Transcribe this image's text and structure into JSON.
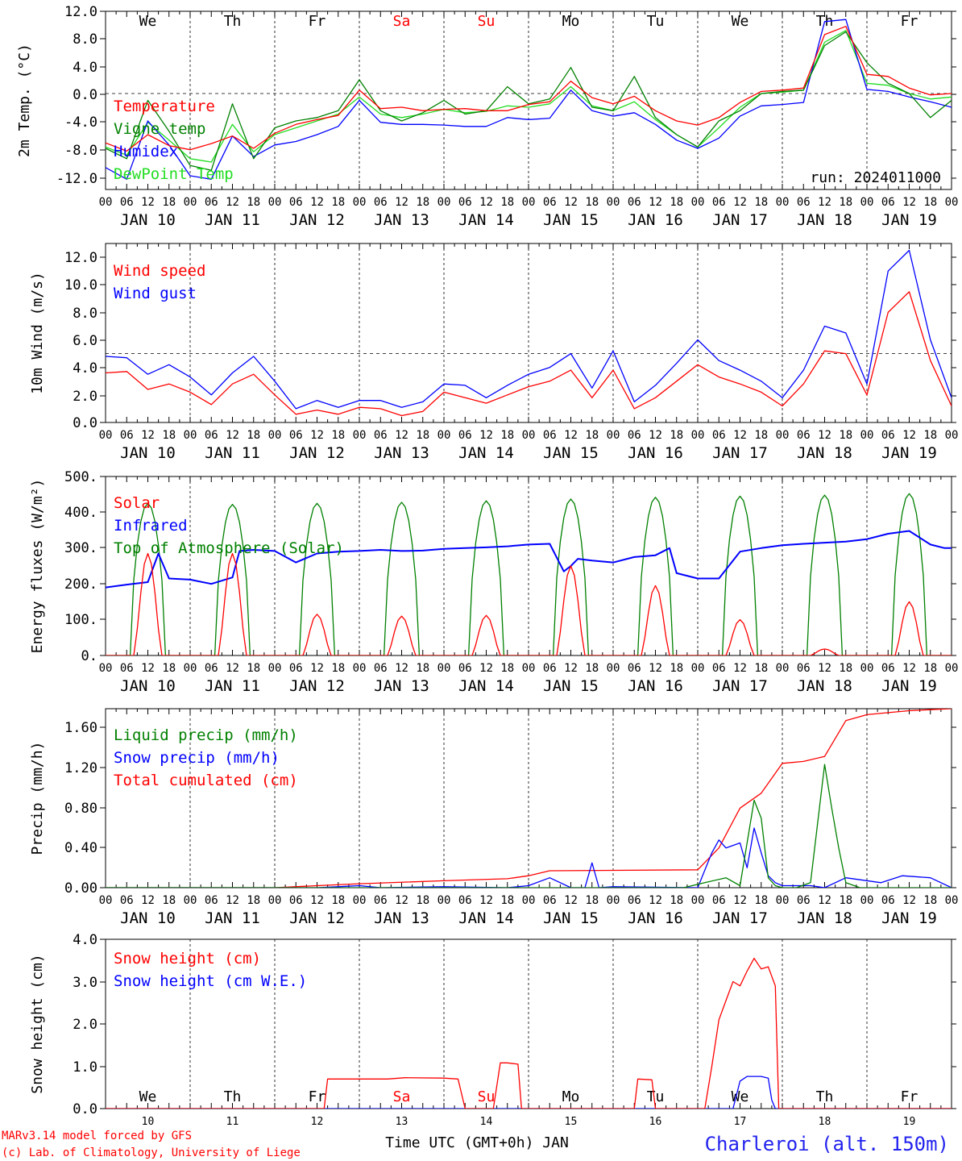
{
  "colors": {
    "red": "#ff0000",
    "blue": "#0000ff",
    "green": "#008000",
    "lightgreen": "#22dd22",
    "black": "#000000"
  },
  "footer": {
    "credit1": "MARv3.14 model forced by GFS",
    "credit2": "(c) Lab. of Climatology, University of Liege",
    "xlabel": "Time UTC (GMT+0h) JAN",
    "station": "Charleroi (alt. 150m)"
  },
  "chart_data": [
    {
      "type": "line",
      "ylabel": "2m Temp. (°C)",
      "ylim": [
        -14,
        12
      ],
      "yticks": [
        "12.0",
        "8.0",
        "4.0",
        "0.0",
        "-4.0",
        "-8.0",
        "-12.0"
      ],
      "run_label": "run: 2024011000",
      "weekday_labels": [
        "We",
        "Th",
        "Fr",
        "Sa",
        "Su",
        "Mo",
        "Tu",
        "We",
        "Th",
        "Fr"
      ],
      "weekday_red": [
        false,
        false,
        false,
        true,
        true,
        false,
        false,
        false,
        false,
        false
      ],
      "date_labels": [
        "JAN 10",
        "JAN 11",
        "JAN 12",
        "JAN 13",
        "JAN 14",
        "JAN 15",
        "JAN 16",
        "JAN 17",
        "JAN 18",
        "JAN 19"
      ],
      "hour_labels": [
        "00",
        "06",
        "12",
        "18"
      ],
      "x_hours": [
        0,
        6,
        12,
        18,
        24,
        30,
        36,
        42,
        48,
        54,
        60,
        66,
        72,
        78,
        84,
        90,
        96,
        102,
        108,
        114,
        120,
        126,
        132,
        138,
        144,
        150,
        156,
        162,
        168,
        174,
        180,
        186,
        192,
        198,
        204,
        210,
        216,
        222,
        228,
        234,
        240
      ],
      "series": [
        {
          "name": "Temperature",
          "color": "#ff0000",
          "values": [
            -7.2,
            -8.4,
            -6.0,
            -7.6,
            -8.2,
            -7.3,
            -6.2,
            -8.0,
            -5.8,
            -4.5,
            -3.8,
            -3.2,
            0.5,
            -2.2,
            -2.0,
            -2.5,
            -2.3,
            -2.2,
            -2.5,
            -2.5,
            -1.6,
            -1.2,
            1.8,
            -0.6,
            -1.5,
            -0.4,
            -2.5,
            -4.0,
            -4.6,
            -3.5,
            -1.3,
            0.3,
            0.5,
            0.8,
            8.6,
            9.8,
            2.8,
            2.5,
            0.8,
            -0.2,
            0.0
          ]
        },
        {
          "name": "Vigne temp",
          "color": "#008000",
          "values": [
            -8.0,
            -9.5,
            -1.0,
            -5.5,
            -10.5,
            -11.2,
            -1.5,
            -9.5,
            -5.0,
            -4.0,
            -3.5,
            -2.5,
            2.0,
            -2.5,
            -4.0,
            -2.8,
            -1.0,
            -3.0,
            -2.5,
            1.0,
            -1.5,
            -0.8,
            3.8,
            -2.0,
            -2.5,
            2.5,
            -3.5,
            -6.0,
            -7.8,
            -4.0,
            -2.5,
            0.0,
            0.3,
            0.5,
            7.0,
            9.0,
            4.5,
            1.5,
            0.0,
            -3.5,
            -1.0
          ]
        },
        {
          "name": "Humidex",
          "color": "#0000ff",
          "values": [
            -10.8,
            -12.5,
            -4.0,
            -7.5,
            -12.0,
            -12.5,
            -6.2,
            -9.2,
            -7.5,
            -7.0,
            -6.0,
            -4.8,
            -1.0,
            -4.2,
            -4.5,
            -4.5,
            -4.6,
            -4.8,
            -4.8,
            -3.5,
            -3.8,
            -3.6,
            0.5,
            -2.5,
            -3.3,
            -2.8,
            -4.5,
            -6.8,
            -8.0,
            -6.5,
            -3.3,
            -1.8,
            -1.6,
            -1.3,
            10.5,
            10.8,
            0.6,
            0.3,
            -0.5,
            -1.2,
            -2.0
          ]
        },
        {
          "name": "DewPoint Temp",
          "color": "#22dd22",
          "values": [
            -7.8,
            -9.0,
            -4.2,
            -6.8,
            -9.5,
            -10.0,
            -4.5,
            -8.5,
            -6.0,
            -5.0,
            -4.0,
            -3.0,
            -0.5,
            -3.0,
            -3.5,
            -3.0,
            -2.3,
            -2.8,
            -2.6,
            -1.8,
            -2.0,
            -1.5,
            1.0,
            -1.8,
            -2.5,
            -1.2,
            -3.8,
            -6.0,
            -7.8,
            -5.0,
            -2.0,
            0.0,
            0.2,
            0.5,
            7.5,
            9.2,
            1.5,
            1.2,
            0.0,
            -0.8,
            -0.5
          ]
        }
      ]
    },
    {
      "type": "line",
      "ylabel": "10m Wind (m/s)",
      "ylim": [
        0,
        13
      ],
      "yticks": [
        "12.0",
        "10.0",
        "8.0",
        "6.0",
        "4.0",
        "2.0",
        "0.0"
      ],
      "date_labels": [
        "JAN 10",
        "JAN 11",
        "JAN 12",
        "JAN 13",
        "JAN 14",
        "JAN 15",
        "JAN 16",
        "JAN 17",
        "JAN 18",
        "JAN 19"
      ],
      "hour_labels": [
        "00",
        "06",
        "12",
        "18"
      ],
      "x_hours": [
        0,
        6,
        12,
        18,
        24,
        30,
        36,
        42,
        48,
        54,
        60,
        66,
        72,
        78,
        84,
        90,
        96,
        102,
        108,
        114,
        120,
        126,
        132,
        138,
        144,
        150,
        156,
        162,
        168,
        174,
        180,
        186,
        192,
        198,
        204,
        210,
        216,
        222,
        228,
        234,
        240
      ],
      "series": [
        {
          "name": "Wind speed",
          "color": "#ff0000",
          "values": [
            3.6,
            3.7,
            2.4,
            2.8,
            2.2,
            1.3,
            2.8,
            3.5,
            2.0,
            0.6,
            0.9,
            0.6,
            1.1,
            1.0,
            0.5,
            0.8,
            2.2,
            1.8,
            1.4,
            2.0,
            2.6,
            3.0,
            3.8,
            1.8,
            3.8,
            1.0,
            1.8,
            3.0,
            4.2,
            3.3,
            2.8,
            2.2,
            1.2,
            2.8,
            5.2,
            5.0,
            2.0,
            8.0,
            9.5,
            4.5,
            1.2
          ]
        },
        {
          "name": "Wind gust",
          "color": "#0000ff",
          "values": [
            4.8,
            4.7,
            3.5,
            4.2,
            3.3,
            2.0,
            3.6,
            4.8,
            3.0,
            1.0,
            1.6,
            1.1,
            1.6,
            1.6,
            1.1,
            1.5,
            2.8,
            2.7,
            1.8,
            2.7,
            3.5,
            4.0,
            5.0,
            2.5,
            5.2,
            1.5,
            2.7,
            4.3,
            6.0,
            4.5,
            3.8,
            3.0,
            1.8,
            3.8,
            7.0,
            6.5,
            2.8,
            11.0,
            12.5,
            6.0,
            1.8
          ]
        }
      ]
    },
    {
      "type": "line",
      "ylabel": "Energy fluxes (W/m²)",
      "ylim": [
        0,
        500
      ],
      "yticks": [
        "500.",
        "400.",
        "300.",
        "200.",
        "100.",
        "0."
      ],
      "date_labels": [
        "JAN 10",
        "JAN 11",
        "JAN 12",
        "JAN 13",
        "JAN 14",
        "JAN 15",
        "JAN 16",
        "JAN 17",
        "JAN 18",
        "JAN 19"
      ],
      "hour_labels": [
        "00",
        "06",
        "12",
        "18"
      ],
      "day_peaks": {
        "solar": [
          285,
          285,
          115,
          110,
          112,
          250,
          195,
          100,
          18,
          150
        ],
        "toa": [
          425,
          422,
          425,
          428,
          432,
          437,
          442,
          445,
          448,
          452
        ]
      },
      "series": [
        {
          "name": "Solar",
          "color": "#ff0000"
        },
        {
          "name": "Infrared",
          "color": "#0000ff",
          "x_hours": [
            0,
            6,
            12,
            15,
            18,
            24,
            30,
            36,
            38,
            42,
            48,
            54,
            60,
            66,
            72,
            78,
            84,
            90,
            96,
            102,
            108,
            114,
            120,
            126,
            130,
            132,
            134,
            138,
            144,
            150,
            156,
            160,
            162,
            168,
            174,
            180,
            186,
            192,
            198,
            204,
            210,
            216,
            222,
            228,
            234,
            238,
            240
          ],
          "values": [
            190,
            198,
            205,
            285,
            215,
            212,
            200,
            218,
            292,
            295,
            292,
            260,
            285,
            290,
            292,
            295,
            292,
            293,
            298,
            300,
            302,
            305,
            310,
            312,
            235,
            250,
            270,
            265,
            260,
            275,
            280,
            300,
            230,
            215,
            215,
            290,
            300,
            308,
            312,
            315,
            318,
            325,
            340,
            348,
            310,
            300,
            300
          ]
        },
        {
          "name": "Top of Atmosphere (Solar)",
          "color": "#008000"
        }
      ]
    },
    {
      "type": "line",
      "ylabel": "Precip (mm/h)",
      "ylim": [
        0,
        1.8
      ],
      "yticks": [
        "1.60",
        "1.20",
        "0.80",
        "0.40",
        "0.00"
      ],
      "date_labels": [
        "JAN 10",
        "JAN 11",
        "JAN 12",
        "JAN 13",
        "JAN 14",
        "JAN 15",
        "JAN 16",
        "JAN 17",
        "JAN 18",
        "JAN 19"
      ],
      "hour_labels": [
        "00",
        "06",
        "12",
        "18"
      ],
      "series": [
        {
          "name": "Liquid precip (mm/h)",
          "color": "#008000",
          "x_hours": [
            0,
            164,
            170,
            176,
            180,
            184,
            186,
            188,
            190,
            192,
            196,
            200,
            204,
            206,
            208,
            210,
            214,
            222,
            240
          ],
          "values": [
            0,
            0,
            0.05,
            0.1,
            0.02,
            0.88,
            0.7,
            0.1,
            0.02,
            0.0,
            0.0,
            0.05,
            1.24,
            0.8,
            0.4,
            0.05,
            0.0,
            0.0,
            0.0
          ]
        },
        {
          "name": "Snow precip (mm/h)",
          "color": "#0000ff",
          "x_hours": [
            0,
            60,
            66,
            72,
            78,
            96,
            114,
            120,
            126,
            132,
            136,
            138,
            140,
            144,
            168,
            172,
            174,
            176,
            180,
            182,
            184,
            186,
            188,
            190,
            192,
            200,
            204,
            210,
            220,
            226,
            234,
            240
          ],
          "values": [
            0,
            0,
            0.01,
            0.02,
            0.0,
            0.01,
            0.0,
            0.02,
            0.1,
            0.0,
            0.0,
            0.25,
            0.0,
            0.01,
            0.0,
            0.35,
            0.48,
            0.4,
            0.45,
            0.2,
            0.6,
            0.35,
            0.12,
            0.05,
            0.02,
            0.02,
            0.0,
            0.1,
            0.05,
            0.12,
            0.1,
            0.0
          ]
        },
        {
          "name": "Total cumulated (cm)",
          "color": "#ff0000",
          "x_hours": [
            0,
            48,
            60,
            72,
            96,
            114,
            120,
            126,
            168,
            174,
            180,
            186,
            192,
            198,
            204,
            210,
            216,
            222,
            228,
            234,
            240
          ],
          "values": [
            0,
            0,
            0.02,
            0.04,
            0.07,
            0.09,
            0.12,
            0.17,
            0.18,
            0.4,
            0.8,
            0.95,
            1.25,
            1.27,
            1.32,
            1.68,
            1.74,
            1.76,
            1.78,
            1.79,
            1.8
          ]
        }
      ]
    },
    {
      "type": "line",
      "ylabel": "Snow height (cm)",
      "ylim": [
        0,
        4
      ],
      "yticks": [
        "4.0",
        "3.0",
        "2.0",
        "1.0",
        "0.0"
      ],
      "weekday_labels": [
        "We",
        "Th",
        "Fr",
        "Sa",
        "Su",
        "Mo",
        "Tu",
        "We",
        "Th",
        "Fr"
      ],
      "weekday_red": [
        false,
        false,
        false,
        true,
        true,
        false,
        false,
        false,
        false,
        false
      ],
      "day_numbers": [
        "10",
        "11",
        "12",
        "13",
        "14",
        "15",
        "16",
        "17",
        "18",
        "19"
      ],
      "series": [
        {
          "name": "Snow height (cm)",
          "color": "#ff0000",
          "x_hours": [
            0,
            62,
            63,
            80,
            85,
            96,
            100,
            102,
            110,
            112,
            114,
            117,
            118,
            150,
            151,
            155,
            156,
            170,
            172,
            174,
            176,
            178,
            180,
            182,
            184,
            186,
            188,
            190,
            191,
            240
          ],
          "values": [
            0,
            0,
            0.7,
            0.7,
            0.73,
            0.72,
            0.7,
            0.0,
            0.0,
            1.08,
            1.08,
            1.05,
            0.0,
            0.0,
            0.7,
            0.68,
            0.0,
            0.0,
            1.0,
            2.1,
            2.55,
            3.0,
            2.9,
            3.25,
            3.55,
            3.3,
            3.35,
            2.9,
            0.0,
            0.0
          ]
        },
        {
          "name": "Snow height (cm W.E.)",
          "color": "#0000ff",
          "x_hours": [
            0,
            178,
            180,
            182,
            186,
            188,
            189,
            190,
            240
          ],
          "values": [
            0,
            0,
            0.65,
            0.76,
            0.76,
            0.72,
            0.2,
            0.0,
            0.0
          ]
        }
      ]
    }
  ]
}
